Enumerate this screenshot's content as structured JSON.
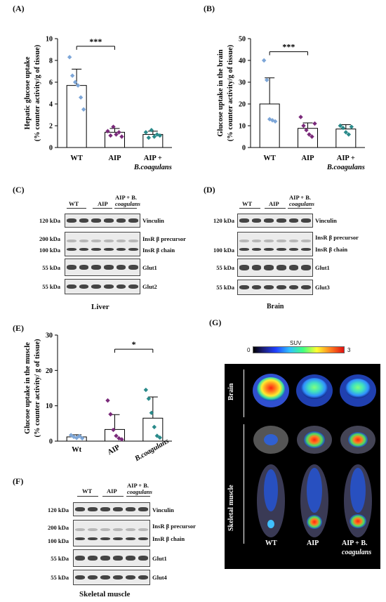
{
  "panels": {
    "A": "(A)",
    "B": "(B)",
    "C": "(C)",
    "D": "(D)",
    "E": "(E)",
    "F": "(F)",
    "G": "(G)"
  },
  "chart_data": [
    {
      "id": "A",
      "type": "bar",
      "ylabel_line1": "Hepatic glucose uptake",
      "ylabel_line2": "(% counter activity/g of tissue)",
      "ylim": [
        0,
        10
      ],
      "yticks": [
        "0",
        "2",
        "4",
        "6",
        "8",
        "10"
      ],
      "ytick_values": [
        0,
        2,
        4,
        6,
        8,
        10
      ],
      "categories": [
        "WT",
        "AIP",
        "AIP +"
      ],
      "category_line2": [
        "",
        "",
        "B.coagulans"
      ],
      "values": [
        5.7,
        1.4,
        1.2
      ],
      "errors": [
        1.5,
        0.35,
        0.3
      ],
      "point_colors": [
        "#7da6d8",
        "#7a2a7a",
        "#2a8a8a"
      ],
      "points": [
        [
          8.3,
          6.6,
          6.0,
          5.7,
          4.6,
          3.5
        ],
        [
          1.5,
          1.1,
          1.9,
          1.2,
          1.4,
          1.0
        ],
        [
          1.4,
          0.9,
          1.6,
          1.0,
          1.2,
          1.1
        ]
      ],
      "significance": {
        "label": "***",
        "from": 0,
        "to": 1,
        "y": 9.3
      }
    },
    {
      "id": "B",
      "type": "bar",
      "ylabel_line1": "Glucose uptake in the brain",
      "ylabel_line2": "(% counter activity/g of tissue)",
      "ylim": [
        0,
        50
      ],
      "yticks": [
        "0",
        "10",
        "20",
        "30",
        "40",
        "50"
      ],
      "ytick_values": [
        0,
        10,
        20,
        30,
        40,
        50
      ],
      "categories": [
        "WT",
        "AIP",
        "AIP +"
      ],
      "category_line2": [
        "",
        "",
        "B.coagulans"
      ],
      "values": [
        20,
        8.8,
        8.5
      ],
      "errors": [
        12,
        2.5,
        2.0
      ],
      "point_colors": [
        "#7da6d8",
        "#7a2a7a",
        "#2a8a8a"
      ],
      "points": [
        [
          40,
          31,
          13,
          12.5,
          12
        ],
        [
          14,
          10,
          8,
          6,
          5,
          11
        ],
        [
          10,
          9,
          7,
          6,
          9.5
        ]
      ],
      "significance": {
        "label": "***",
        "from": 0,
        "to": 1,
        "y": 44
      }
    },
    {
      "id": "E",
      "type": "bar",
      "ylabel_line1": "Glucose uptake in the muscle",
      "ylabel_line2": "(% counter activity/ g of tissue)",
      "ylim": [
        0,
        30
      ],
      "yticks": [
        "0",
        "10",
        "20",
        "30"
      ],
      "ytick_values": [
        0,
        10,
        20,
        30
      ],
      "categories": [
        "Wt",
        "AIP",
        "B.coagulans"
      ],
      "category_line2": [
        "",
        "",
        ""
      ],
      "values": [
        1.2,
        3.3,
        6.5
      ],
      "errors": [
        0.6,
        4.2,
        6.0
      ],
      "point_colors": [
        "#7da6d8",
        "#7a2a7a",
        "#2a8a8a"
      ],
      "points": [
        [
          1.7,
          1.2,
          0.9,
          1.4,
          0.8
        ],
        [
          11.5,
          7.6,
          3.2,
          1.5,
          0.8,
          0.5
        ],
        [
          14.5,
          12,
          8,
          4,
          1.5,
          1.0
        ]
      ],
      "significance": {
        "label": "*",
        "from": 1,
        "to": 2,
        "y": 26
      }
    }
  ],
  "blots": {
    "C": {
      "tissue": "Liver",
      "groups": [
        "WT",
        "AIP",
        "AIP + B.",
        "coagulans"
      ],
      "rows": [
        {
          "kda": "120 kDa",
          "name": "Vinculin"
        },
        {
          "kda": "200 kDa",
          "name": "InsR β precursor"
        },
        {
          "kda": "100 kDa",
          "name": "InsR β chain"
        },
        {
          "kda": "55 kDa",
          "name": "Glut1"
        },
        {
          "kda": "55 kDa",
          "name": "Glut2"
        }
      ]
    },
    "D": {
      "tissue": "Brain",
      "groups": [
        "WT",
        "AIP",
        "AIP + B.",
        "coagulans"
      ],
      "rows": [
        {
          "kda": "120 kDa",
          "name": "Vinculin"
        },
        {
          "kda": "",
          "name": "InsR β precursor"
        },
        {
          "kda": "100 kDa",
          "name": "InsR β chain"
        },
        {
          "kda": "55 kDa",
          "name": "Glut1"
        },
        {
          "kda": "55 kDa",
          "name": "Glut3"
        }
      ]
    },
    "F": {
      "tissue": "Skeletal muscle",
      "groups": [
        "WT",
        "AIP",
        "AIP + B.",
        "coagulans"
      ],
      "rows": [
        {
          "kda": "120 kDa",
          "name": "Vinculin"
        },
        {
          "kda": "200 kDa",
          "name": "InsR β precursor"
        },
        {
          "kda": "100 kDa",
          "name": "InsR β chain"
        },
        {
          "kda": "55 kDa",
          "name": "Glut1"
        },
        {
          "kda": "55 kDa",
          "name": "Glut4"
        }
      ]
    }
  },
  "pet": {
    "colorbar_title": "SUV",
    "colorbar_min": "0",
    "colorbar_max": "3",
    "row_brain": "Brain",
    "row_muscle": "Skeletal muscle",
    "col_wt": "WT",
    "col_aip": "AIP",
    "col_aipb_1": "AIP + B.",
    "col_aipb_2": "coagulans"
  }
}
